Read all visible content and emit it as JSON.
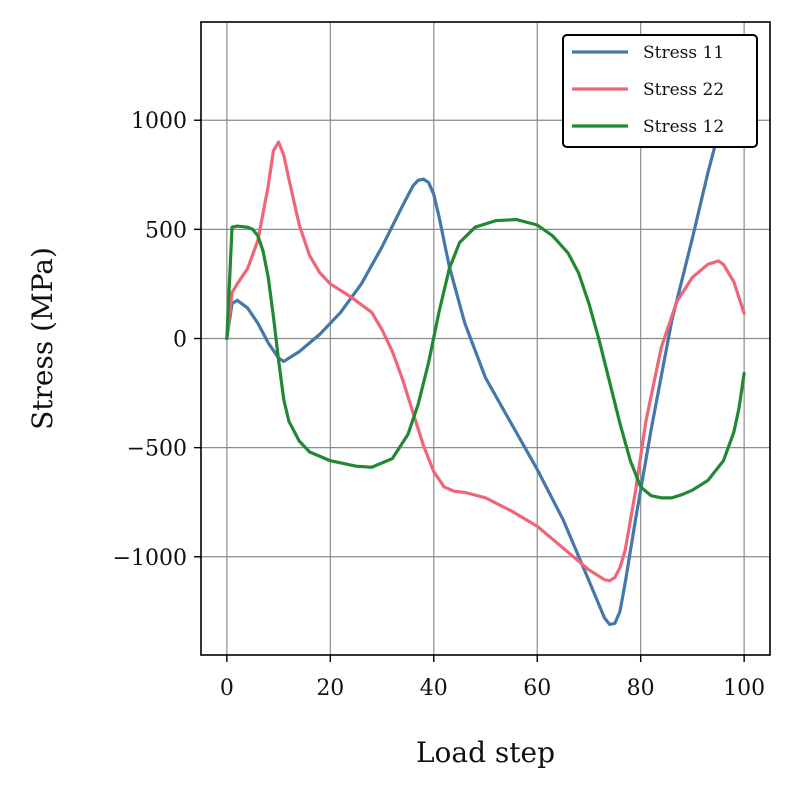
{
  "chart_data": {
    "type": "line",
    "title": "",
    "xlabel": "Load step",
    "ylabel": "Stress (MPa)",
    "xlim": [
      -5,
      105
    ],
    "ylim": [
      -1450,
      1450
    ],
    "xticks": [
      0,
      20,
      40,
      60,
      80,
      100
    ],
    "yticks": [
      -1000,
      -500,
      0,
      500,
      1000
    ],
    "xtick_labels": [
      "0",
      "20",
      "40",
      "60",
      "80",
      "100"
    ],
    "ytick_labels": [
      "−1000",
      "−500",
      "0",
      "500",
      "1000"
    ],
    "grid": true,
    "legend_position": "top-right",
    "series": [
      {
        "name": "Stress 11",
        "color": "#4477aa",
        "x": [
          0,
          1,
          2,
          4,
          6,
          8,
          10,
          11,
          14,
          18,
          22,
          26,
          30,
          34,
          36,
          37,
          38,
          39,
          40,
          41,
          43,
          46,
          50,
          55,
          60,
          65,
          70,
          73,
          74,
          75,
          76,
          77,
          79,
          82,
          86,
          90,
          93,
          95
        ],
        "y": [
          0,
          160,
          175,
          140,
          70,
          -20,
          -90,
          -105,
          -60,
          20,
          120,
          250,
          420,
          610,
          700,
          725,
          730,
          715,
          660,
          560,
          330,
          70,
          -180,
          -390,
          -600,
          -830,
          -1110,
          -1280,
          -1310,
          -1305,
          -1250,
          -1120,
          -830,
          -420,
          80,
          460,
          760,
          940
        ]
      },
      {
        "name": "Stress 22",
        "color": "#ee6677",
        "x": [
          0,
          1,
          2,
          4,
          6,
          8,
          9,
          10,
          11,
          12,
          14,
          16,
          18,
          20,
          24,
          28,
          30,
          32,
          34,
          36,
          38,
          40,
          42,
          44,
          46,
          50,
          55,
          60,
          65,
          70,
          72,
          73,
          74,
          75,
          76,
          77,
          79,
          81,
          84,
          87,
          90,
          93,
          95,
          96,
          98,
          100
        ],
        "y": [
          0,
          210,
          250,
          320,
          450,
          700,
          860,
          900,
          840,
          730,
          520,
          380,
          300,
          250,
          190,
          120,
          40,
          -60,
          -190,
          -340,
          -490,
          -610,
          -680,
          -700,
          -705,
          -730,
          -790,
          -860,
          -960,
          -1060,
          -1090,
          -1105,
          -1110,
          -1095,
          -1050,
          -970,
          -700,
          -380,
          -40,
          170,
          280,
          340,
          355,
          340,
          260,
          115
        ]
      },
      {
        "name": "Stress 12",
        "color": "#228833",
        "x": [
          0,
          1,
          2,
          4,
          5,
          6,
          7,
          8,
          9,
          10,
          11,
          12,
          14,
          16,
          20,
          25,
          28,
          32,
          35,
          37,
          39,
          41,
          43,
          45,
          48,
          52,
          56,
          60,
          63,
          66,
          68,
          70,
          72,
          74,
          76,
          78,
          80,
          82,
          84,
          86,
          88,
          90,
          93,
          96,
          98,
          99,
          100
        ],
        "y": [
          0,
          510,
          515,
          510,
          500,
          470,
          400,
          280,
          100,
          -100,
          -280,
          -380,
          -470,
          -520,
          -560,
          -585,
          -590,
          -550,
          -440,
          -300,
          -110,
          120,
          320,
          440,
          510,
          540,
          545,
          520,
          470,
          390,
          300,
          160,
          -10,
          -200,
          -390,
          -560,
          -680,
          -720,
          -730,
          -730,
          -715,
          -695,
          -650,
          -560,
          -430,
          -320,
          -160
        ]
      }
    ]
  }
}
